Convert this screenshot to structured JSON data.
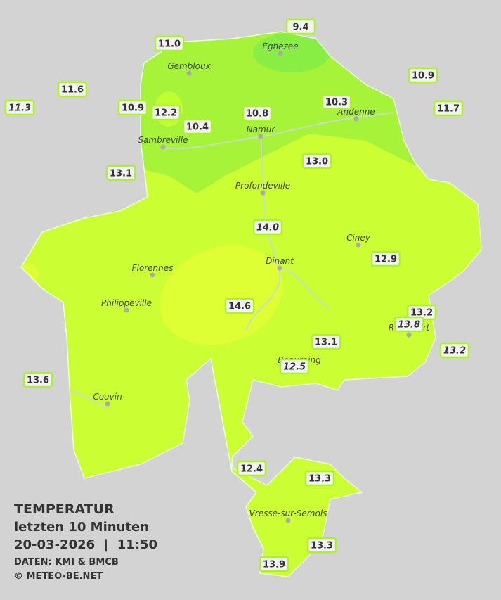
{
  "legend": {
    "title": "TEMPERATUR",
    "period": "letzten 10 Minuten",
    "timestamp": "20-03-2026  |  11:50",
    "source": "DATEN: KMI & BMCB",
    "copyright": "© METEO-BE.NET"
  },
  "cities": [
    "Eghezee",
    "Gembloux",
    "Andenne",
    "Namur",
    "Sambreville",
    "Profondeville",
    "Ciney",
    "Dinant",
    "Florennes",
    "Philippeville",
    "Rochefort",
    "Beauraing",
    "Couvin",
    "Vresse-sur-Semois"
  ],
  "stations": [
    {
      "label": "9.4",
      "italic": false
    },
    {
      "label": "11.0",
      "italic": false
    },
    {
      "label": "10.9",
      "italic": false
    },
    {
      "label": "11.6",
      "italic": false
    },
    {
      "label": "11.3",
      "italic": true
    },
    {
      "label": "10.9",
      "italic": false
    },
    {
      "label": "12.2",
      "italic": false
    },
    {
      "label": "10.3",
      "italic": false
    },
    {
      "label": "11.7",
      "italic": false
    },
    {
      "label": "10.8",
      "italic": false
    },
    {
      "label": "10.4",
      "italic": false
    },
    {
      "label": "13.0",
      "italic": false
    },
    {
      "label": "13.1",
      "italic": false
    },
    {
      "label": "14.0",
      "italic": true
    },
    {
      "label": "12.9",
      "italic": false
    },
    {
      "label": "14.6",
      "italic": false
    },
    {
      "label": "13.2",
      "italic": false
    },
    {
      "label": "13.8",
      "italic": true
    },
    {
      "label": "13.1",
      "italic": false
    },
    {
      "label": "13.2",
      "italic": true
    },
    {
      "label": "12.5",
      "italic": true
    },
    {
      "label": "13.6",
      "italic": false
    },
    {
      "label": "12.4",
      "italic": false
    },
    {
      "label": "13.3",
      "italic": false
    },
    {
      "label": "13.3",
      "italic": false
    },
    {
      "label": "13.9",
      "italic": false
    }
  ]
}
